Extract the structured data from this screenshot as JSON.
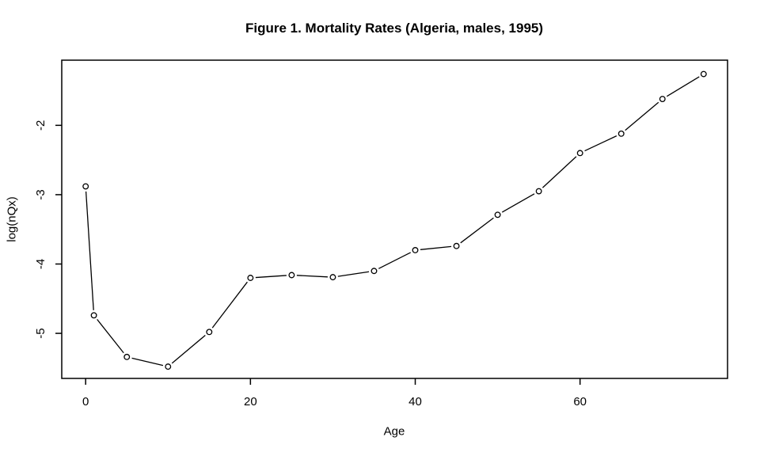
{
  "figure": {
    "title": "Figure 1. Mortality Rates (Algeria, males, 1995)",
    "xlabel": "Age",
    "ylabel": "log(nQx)"
  },
  "chart_data": {
    "type": "line",
    "title": "Figure 1. Mortality Rates (Algeria, males, 1995)",
    "xlabel": "Age",
    "ylabel": "log(nQx)",
    "series": [
      {
        "name": "log(nQx)",
        "x": [
          0,
          1,
          5,
          10,
          15,
          20,
          25,
          30,
          35,
          40,
          45,
          50,
          55,
          60,
          65,
          70,
          75
        ],
        "y": [
          -2.88,
          -4.74,
          -5.34,
          -5.48,
          -4.98,
          -4.2,
          -4.16,
          -4.19,
          -4.1,
          -3.8,
          -3.74,
          -3.29,
          -2.95,
          -2.4,
          -2.12,
          -1.62,
          -1.26
        ]
      }
    ],
    "xlim": [
      -2.9,
      77.9
    ],
    "ylim": [
      -5.65,
      -1.06
    ],
    "xticks": [
      0,
      20,
      40,
      60
    ],
    "yticks": [
      -5,
      -4,
      -3,
      -2
    ],
    "grid": false,
    "legend_position": "none",
    "marker": "open-circle",
    "line_style": "segments-with-gaps",
    "colors": {
      "foreground": "#000000",
      "background": "#ffffff"
    }
  }
}
